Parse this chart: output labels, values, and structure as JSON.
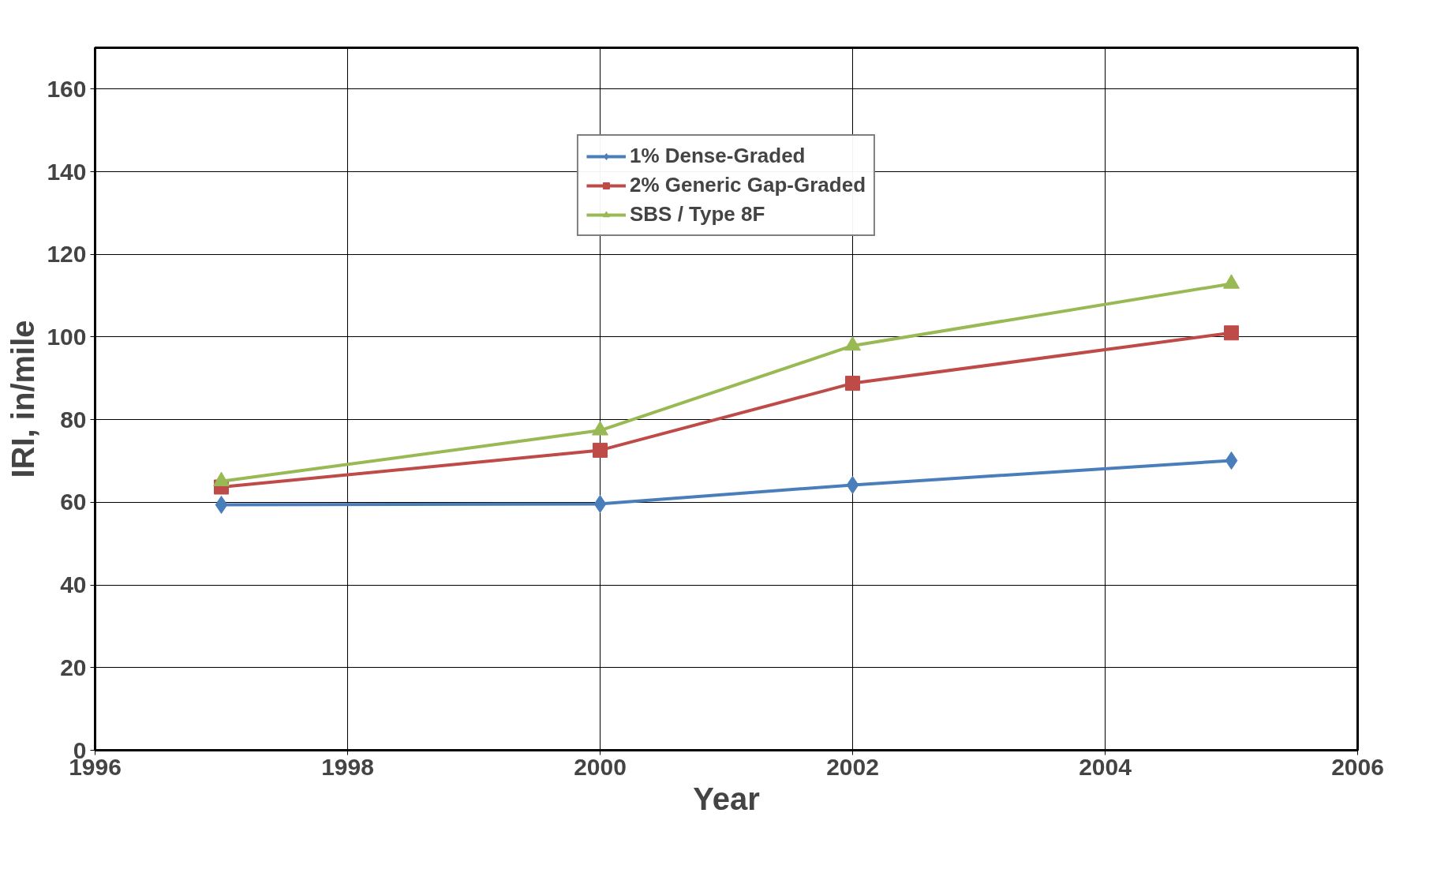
{
  "chart_data": {
    "type": "line",
    "xlabel": "Year",
    "ylabel": "IRI, in/mile",
    "x": [
      1997,
      2000,
      2002,
      2005
    ],
    "series": [
      {
        "name": "1% Dense-Graded",
        "color": "#4a7ebb",
        "marker": "diamond",
        "values": [
          59.4,
          59.6,
          64.2,
          70.1
        ]
      },
      {
        "name": "2% Generic Gap-Graded",
        "color": "#be4b48",
        "marker": "square",
        "values": [
          63.7,
          72.6,
          88.8,
          101
        ]
      },
      {
        "name": "SBS / Type 8F",
        "color": "#98b954",
        "marker": "triangle",
        "values": [
          65.1,
          77.4,
          97.9,
          112.9
        ]
      }
    ],
    "xlim": [
      1996,
      2006
    ],
    "xticks": [
      1996,
      1998,
      2000,
      2002,
      2004,
      2006
    ],
    "ylim": [
      0,
      170
    ],
    "yticks": [
      0,
      20,
      40,
      60,
      80,
      100,
      120,
      140,
      160
    ],
    "grid": true,
    "legend": "top"
  }
}
